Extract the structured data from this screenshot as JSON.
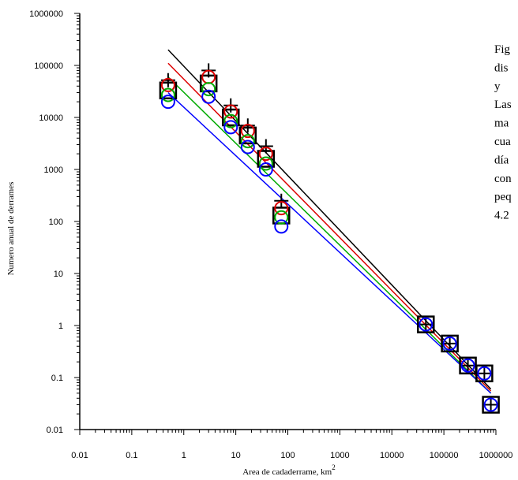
{
  "chart_data": {
    "type": "scatter",
    "xscale": "log",
    "yscale": "log",
    "xlim": [
      0.01,
      1000000
    ],
    "ylim": [
      0.01,
      1000000
    ],
    "xlabel": "Area de cadaderrame, km",
    "xlabel_superscript": "2",
    "ylabel": "Numero anual de derrames",
    "x_tick_labels": [
      "0.01",
      "0.1",
      "1",
      "10",
      "100",
      "1000",
      "10000",
      "100000",
      "1000000"
    ],
    "y_tick_labels": [
      "0.01",
      "0.1",
      "1",
      "10",
      "100",
      "1000",
      "10000",
      "100000",
      "1000000"
    ],
    "grid": false,
    "legend": "none",
    "series": [
      {
        "marker": "square",
        "color": "#000000",
        "points": [
          [
            0.5,
            33000
          ],
          [
            3,
            45000
          ],
          [
            8,
            10000
          ],
          [
            17,
            4500
          ],
          [
            38,
            1600
          ],
          [
            75,
            130
          ],
          [
            45000,
            1.05
          ],
          [
            130000,
            0.45
          ],
          [
            290000,
            0.17
          ],
          [
            600000,
            0.12
          ],
          [
            800000,
            0.03
          ]
        ]
      },
      {
        "marker": "plus",
        "color": "#000000",
        "points": [
          [
            0.5,
            52000
          ],
          [
            3,
            80000
          ],
          [
            8,
            17000
          ],
          [
            17,
            7000
          ],
          [
            38,
            2800
          ],
          [
            75,
            250
          ],
          [
            45000,
            1.05
          ],
          [
            130000,
            0.45
          ],
          [
            290000,
            0.17
          ],
          [
            600000,
            0.12
          ],
          [
            800000,
            0.03
          ]
        ]
      },
      {
        "marker": "circle",
        "color": "#dd0000",
        "points": [
          [
            0.5,
            42000
          ],
          [
            3,
            60000
          ],
          [
            8,
            13000
          ],
          [
            17,
            5500
          ],
          [
            38,
            2000
          ],
          [
            75,
            180
          ]
        ]
      },
      {
        "marker": "circle",
        "color": "#00aa00",
        "points": [
          [
            0.5,
            27000
          ],
          [
            3,
            35000
          ],
          [
            8,
            8500
          ],
          [
            17,
            3500
          ],
          [
            38,
            1300
          ],
          [
            75,
            120
          ]
        ]
      },
      {
        "marker": "circle",
        "color": "#0000ff",
        "points": [
          [
            0.5,
            20000
          ],
          [
            3,
            25000
          ],
          [
            8,
            6500
          ],
          [
            17,
            2700
          ],
          [
            38,
            1000
          ],
          [
            75,
            80
          ],
          [
            45000,
            1.05
          ],
          [
            130000,
            0.45
          ],
          [
            290000,
            0.17
          ],
          [
            600000,
            0.12
          ],
          [
            800000,
            0.03
          ]
        ]
      }
    ],
    "fit_lines": [
      {
        "color": "#000000",
        "points": [
          [
            0.5,
            200000
          ],
          [
            800000,
            0.06
          ]
        ]
      },
      {
        "color": "#dd0000",
        "points": [
          [
            0.5,
            110000
          ],
          [
            800000,
            0.055
          ]
        ]
      },
      {
        "color": "#00aa00",
        "points": [
          [
            0.5,
            60000
          ],
          [
            800000,
            0.05
          ]
        ]
      },
      {
        "color": "#0000ff",
        "points": [
          [
            0.5,
            30000
          ],
          [
            800000,
            0.05
          ]
        ]
      }
    ]
  },
  "caption": {
    "lines": [
      "Fig",
      "dis",
      "y",
      "Las",
      "ma",
      "cua",
      "día",
      "con",
      "peq",
      "4.2"
    ]
  }
}
